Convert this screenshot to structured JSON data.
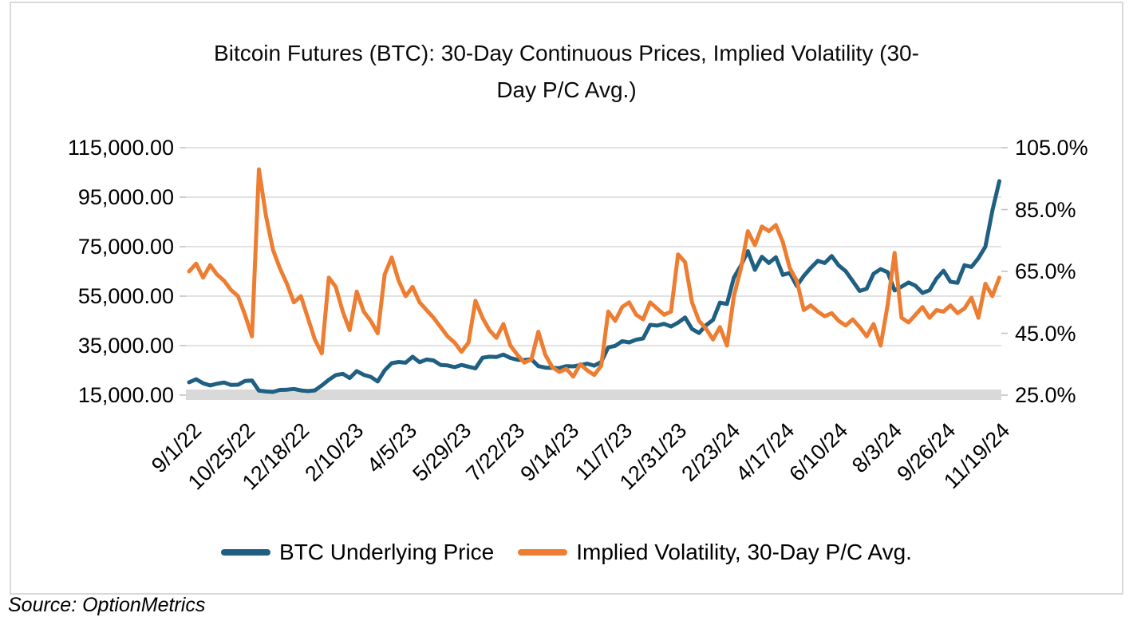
{
  "source": "Source: OptionMetrics",
  "chart": {
    "title_line1": "Bitcoin Futures (BTC): 30-Day Continuous Prices, Implied Volatility (30-",
    "title_line2": "Day P/C Avg.)"
  },
  "legend": {
    "price_label": "BTC Underlying Price",
    "iv_label": "Implied Volatility, 30-Day P/C Avg."
  },
  "colors": {
    "price_line": "#1F5F82",
    "iv_line": "#ED7D31",
    "gridline": "#D9D9D9",
    "baseline_band": "#D9D9D9",
    "frame_border": "#D9D9D9",
    "tick_mark": "#BFBFBF"
  },
  "chart_data": {
    "type": "line",
    "title": "Bitcoin Futures (BTC): 30-Day Continuous Prices, Implied Volatility (30-Day P/C Avg.)",
    "legend_position": "bottom",
    "grid": "horizontal",
    "x_start_date": "9/1/22",
    "x_tick_interval_days": 54,
    "x_tick_labels": [
      "9/1/22",
      "10/25/22",
      "12/18/22",
      "2/10/23",
      "4/5/23",
      "5/29/23",
      "7/22/23",
      "9/14/23",
      "11/7/23",
      "12/31/23",
      "2/23/24",
      "4/17/24",
      "6/10/24",
      "8/3/24",
      "9/26/24",
      "11/19/24"
    ],
    "left_axis": {
      "label_format": "price-usd",
      "min": 15000,
      "max": 115000,
      "tick_values": [
        115000,
        95000,
        75000,
        55000,
        35000,
        15000
      ],
      "tick_labels": [
        "115,000.00",
        "95,000.00",
        "75,000.00",
        "55,000.00",
        "35,000.00",
        "15,000.00"
      ]
    },
    "right_axis": {
      "label_format": "percent",
      "min": 25,
      "max": 105,
      "tick_values": [
        105,
        85,
        65,
        45,
        25
      ],
      "tick_labels": [
        "105.0%",
        "85.0%",
        "65.0%",
        "45.0%",
        "25.0%"
      ]
    },
    "days_from_start": [
      0,
      7,
      14,
      21,
      28,
      35,
      42,
      49,
      56,
      63,
      70,
      77,
      84,
      91,
      98,
      105,
      112,
      119,
      126,
      133,
      140,
      147,
      154,
      161,
      168,
      175,
      182,
      189,
      196,
      203,
      210,
      217,
      224,
      231,
      238,
      245,
      252,
      259,
      266,
      273,
      280,
      287,
      294,
      301,
      308,
      315,
      322,
      329,
      336,
      343,
      350,
      357,
      364,
      371,
      378,
      385,
      392,
      399,
      406,
      413,
      420,
      427,
      434,
      441,
      448,
      455,
      462,
      469,
      476,
      483,
      490,
      497,
      504,
      511,
      518,
      525,
      532,
      539,
      546,
      553,
      560,
      567,
      574,
      581,
      588,
      595,
      602,
      609,
      616,
      623,
      630,
      637,
      644,
      651,
      658,
      665,
      672,
      679,
      686,
      693,
      700,
      707,
      714,
      721,
      728,
      735,
      742,
      749,
      756,
      763,
      770,
      777,
      784,
      791,
      798,
      805,
      812
    ],
    "series": [
      {
        "name": "BTC Underlying Price",
        "axis": "left",
        "color": "#1F5F82",
        "values": [
          20200,
          21400,
          19800,
          18900,
          19600,
          20100,
          19100,
          19200,
          20700,
          20900,
          16800,
          16500,
          16300,
          17100,
          17200,
          17500,
          16900,
          16600,
          16900,
          18900,
          21200,
          23100,
          23600,
          21900,
          24700,
          23200,
          22400,
          20500,
          25000,
          27900,
          28400,
          28100,
          30500,
          28300,
          29400,
          29000,
          27200,
          27000,
          26300,
          27200,
          26500,
          25800,
          30100,
          30500,
          30400,
          31400,
          30000,
          29300,
          29200,
          29500,
          26700,
          26100,
          26000,
          25900,
          26700,
          26600,
          27100,
          27700,
          26900,
          28400,
          34300,
          34900,
          36800,
          36300,
          37400,
          37900,
          43400,
          43100,
          43800,
          42700,
          44300,
          46400,
          41700,
          40100,
          43200,
          45400,
          52400,
          51800,
          62500,
          67400,
          73200,
          65600,
          70900,
          68400,
          70700,
          63600,
          64400,
          59100,
          63200,
          66400,
          69300,
          68400,
          71200,
          67400,
          65100,
          61100,
          57100,
          58000,
          64100,
          65900,
          64700,
          57300,
          58800,
          60500,
          59200,
          56300,
          57400,
          62100,
          65300,
          60800,
          60400,
          67500,
          66800,
          70300,
          75000,
          89500,
          101500
        ]
      },
      {
        "name": "Implied Volatility, 30-Day P/C Avg.",
        "axis": "right",
        "color": "#ED7D31",
        "values": [
          65,
          67.5,
          63,
          67,
          64,
          62,
          59,
          57,
          51,
          44,
          98,
          83,
          72,
          66,
          61,
          55,
          57,
          50,
          43,
          38.5,
          63,
          60,
          52,
          46,
          58.5,
          52,
          49,
          45,
          64,
          69.5,
          62,
          57,
          60,
          55,
          52.5,
          50,
          47,
          44,
          42,
          39,
          42,
          55.5,
          50,
          46,
          43.5,
          48,
          41,
          38,
          35.5,
          36.5,
          45.5,
          38,
          34,
          32.5,
          33.5,
          31,
          35,
          33,
          31.5,
          34.5,
          52,
          49,
          53.5,
          55,
          51,
          49.5,
          55,
          53,
          51,
          52,
          70.5,
          68,
          55,
          49,
          46.5,
          43,
          47,
          41,
          57,
          66,
          78,
          73.5,
          79.5,
          78,
          80,
          74.5,
          66,
          62,
          52.5,
          54,
          52,
          50.5,
          51.5,
          49,
          47.5,
          49.5,
          47,
          44,
          48,
          41,
          54,
          71,
          50,
          48.5,
          51,
          53.5,
          50,
          52.5,
          52,
          54,
          51.5,
          53,
          56.5,
          50,
          61,
          57,
          63
        ]
      }
    ]
  }
}
